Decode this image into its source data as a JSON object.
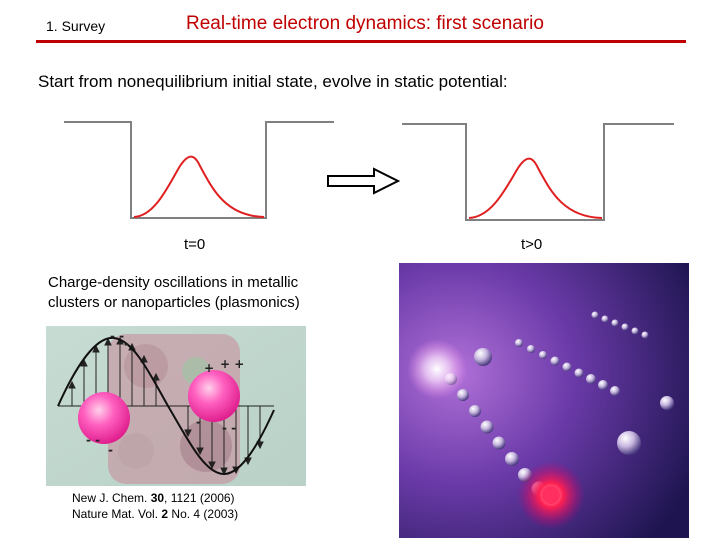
{
  "header": {
    "section": "1. Survey",
    "title": "Real-time electron dynamics: first scenario"
  },
  "intro": "Start from nonequilibrium initial state, evolve in static potential:",
  "diagram": {
    "label_initial": "t=0",
    "label_later": "t>0"
  },
  "caption": {
    "line1": "Charge-density oscillations in metallic",
    "line2": "clusters or nanoparticles (plasmonics)"
  },
  "references": {
    "ref1": {
      "journal": "New J. Chem. ",
      "volume": "30",
      "rest": ", 1121 (2006)"
    },
    "ref2": {
      "journal": "Nature Mat. Vol. ",
      "volume": "2",
      "rest": " No. 4 (2003)"
    }
  },
  "colors": {
    "title_red": "#c00000",
    "curve_red": "#e02020",
    "well_gray": "#808080"
  }
}
